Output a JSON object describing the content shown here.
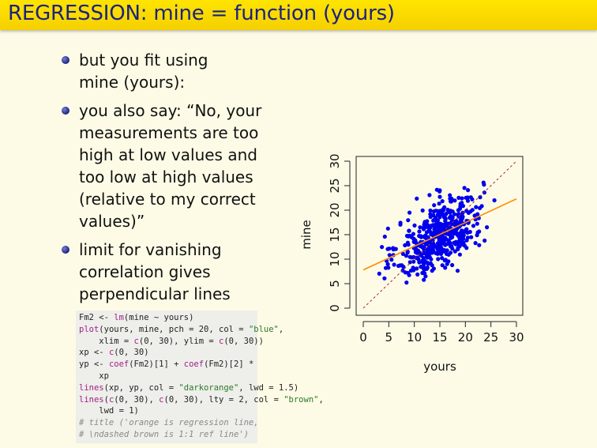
{
  "title": "REGRESSION: mine = function (yours)",
  "bullets": [
    {
      "lines": [
        "but you fit using",
        "mine (yours):"
      ]
    },
    {
      "lines": [
        "you also say: “No, your",
        "measurements are too",
        "high at low values and",
        "too low at high values",
        "(relative to my correct",
        "values)”"
      ]
    },
    {
      "lines": [
        "limit for vanishing",
        "correlation gives",
        "perpendicular lines"
      ]
    }
  ],
  "code": [
    [
      {
        "t": "Fm2 <- ",
        "c": "plain"
      },
      {
        "t": "lm",
        "c": "fn"
      },
      {
        "t": "(mine ~ yours)",
        "c": "plain"
      }
    ],
    [
      {
        "t": "plot",
        "c": "fn"
      },
      {
        "t": "(yours, mine, pch = 20, col = ",
        "c": "plain"
      },
      {
        "t": "\"blue\"",
        "c": "str"
      },
      {
        "t": ",",
        "c": "plain"
      }
    ],
    [
      {
        "t": "    xlim = ",
        "c": "plain"
      },
      {
        "t": "c",
        "c": "fn"
      },
      {
        "t": "(0, 30), ylim = ",
        "c": "plain"
      },
      {
        "t": "c",
        "c": "fn"
      },
      {
        "t": "(0, 30))",
        "c": "plain"
      }
    ],
    [
      {
        "t": "xp <- ",
        "c": "plain"
      },
      {
        "t": "c",
        "c": "fn"
      },
      {
        "t": "(0, 30)",
        "c": "plain"
      }
    ],
    [
      {
        "t": "yp <- ",
        "c": "plain"
      },
      {
        "t": "coef",
        "c": "fn"
      },
      {
        "t": "(Fm2)[1] + ",
        "c": "plain"
      },
      {
        "t": "coef",
        "c": "fn"
      },
      {
        "t": "(Fm2)[2] *",
        "c": "plain"
      }
    ],
    [
      {
        "t": "    xp",
        "c": "plain"
      }
    ],
    [
      {
        "t": "lines",
        "c": "fn"
      },
      {
        "t": "(xp, yp, col = ",
        "c": "plain"
      },
      {
        "t": "\"darkorange\"",
        "c": "str"
      },
      {
        "t": ", lwd = 1.5)",
        "c": "plain"
      }
    ],
    [
      {
        "t": "lines",
        "c": "fn"
      },
      {
        "t": "(",
        "c": "plain"
      },
      {
        "t": "c",
        "c": "fn"
      },
      {
        "t": "(0, 30), ",
        "c": "plain"
      },
      {
        "t": "c",
        "c": "fn"
      },
      {
        "t": "(0, 30), lty = 2, col = ",
        "c": "plain"
      },
      {
        "t": "\"brown\"",
        "c": "str"
      },
      {
        "t": ",",
        "c": "plain"
      }
    ],
    [
      {
        "t": "    lwd = 1)",
        "c": "plain"
      }
    ],
    [
      {
        "t": "# title ('orange is regression line,",
        "c": "comment"
      }
    ],
    [
      {
        "t": "# \\ndashed brown is 1:1 ref line')",
        "c": "comment"
      }
    ]
  ],
  "chart_data": {
    "type": "scatter",
    "title": "",
    "xlabel": "yours",
    "ylabel": "mine",
    "xlim": [
      0,
      30
    ],
    "ylim": [
      0,
      30
    ],
    "xticks": [
      0,
      5,
      10,
      15,
      20,
      25,
      30
    ],
    "yticks": [
      0,
      5,
      10,
      15,
      20,
      25,
      30
    ],
    "point_color": "#0000ee",
    "point_count": 500,
    "cluster": {
      "x_mean": 15,
      "x_sd": 4.2,
      "y_mean": 15,
      "y_sd": 4.2,
      "correlation": 0.55
    },
    "x_range": [
      3,
      26
    ],
    "y_range": [
      4.5,
      26.5
    ],
    "regression_line": {
      "color": "#ff8c00",
      "x": [
        0,
        30
      ],
      "y": [
        7.8,
        22.3
      ]
    },
    "reference_line": {
      "color": "#a52a2a",
      "style": "dashed",
      "x": [
        0,
        30
      ],
      "y": [
        0,
        30
      ]
    }
  }
}
